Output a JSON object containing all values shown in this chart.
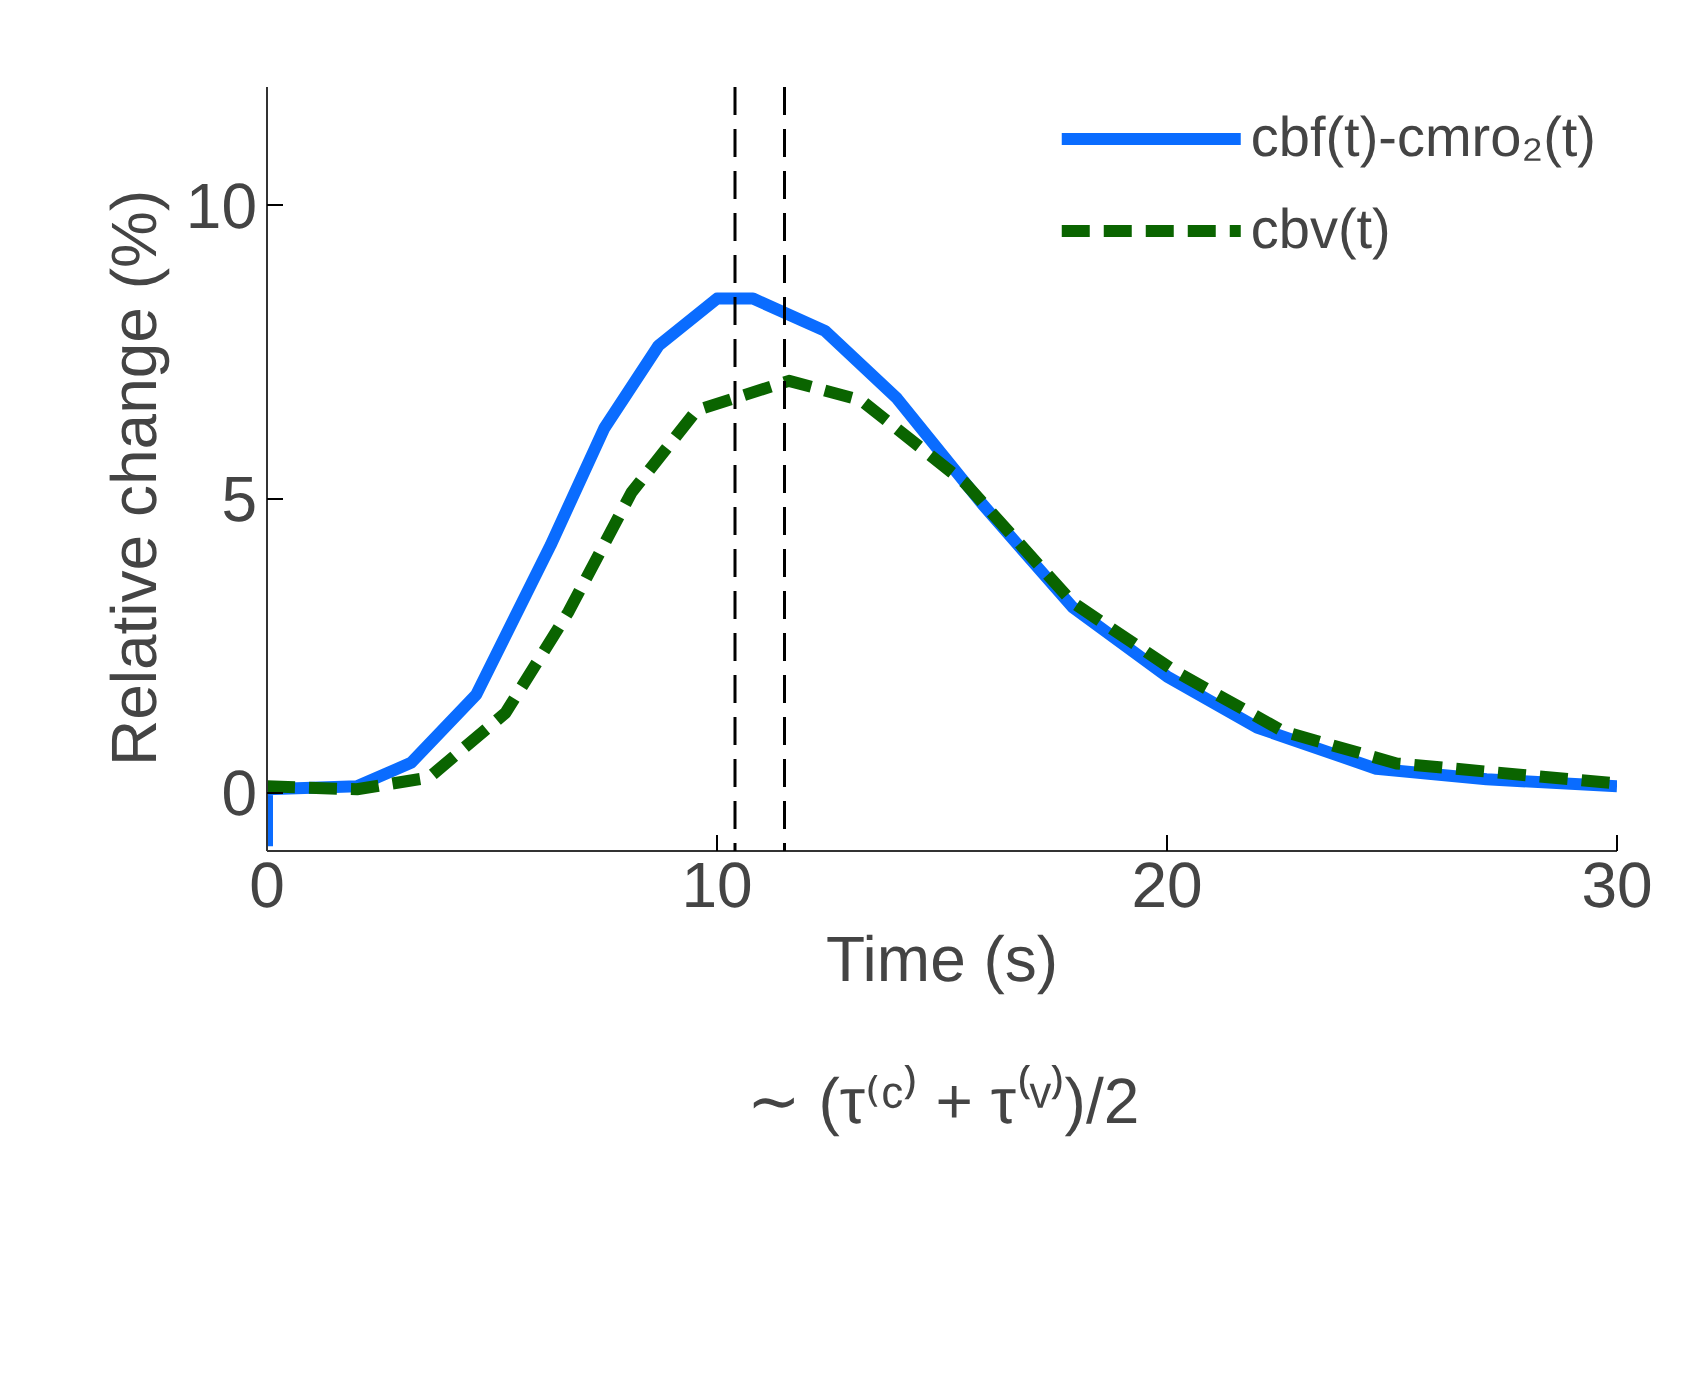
{
  "chart_data": {
    "type": "line",
    "xlabel": "Time (s)",
    "ylabel": "Relative  change (%)",
    "xlim": [
      0,
      30
    ],
    "ylim": [
      -1,
      12
    ],
    "xticks": [
      0,
      10,
      20,
      30
    ],
    "yticks": [
      0,
      5,
      10
    ],
    "grid": false,
    "legend": "top right",
    "series": [
      {
        "name": "cbf(t)-cmro₂(t)",
        "color": "#0a6cff",
        "line_style": "solid",
        "x": [
          0,
          0,
          2.0,
          3.2,
          4.65,
          6.3,
          7.5,
          8.7,
          10.0,
          10.8,
          12.4,
          14.0,
          15.9,
          17.9,
          20.0,
          22.0,
          24.65,
          27.1,
          30
        ],
        "values": [
          -0.92,
          0.05,
          0.1,
          0.5,
          1.66,
          4.2,
          6.2,
          7.6,
          8.4,
          8.4,
          7.85,
          6.7,
          4.9,
          3.15,
          1.97,
          1.1,
          0.4,
          0.22,
          0.1
        ]
      },
      {
        "name": "cbv(t)",
        "color": "#0a6400",
        "line_style": "dashed",
        "x": [
          0,
          2.0,
          3.6,
          5.3,
          6.7,
          8.1,
          9.55,
          11.6,
          13.2,
          15.5,
          17.9,
          20.2,
          22.6,
          25.1,
          30
        ],
        "values": [
          0.1,
          0.05,
          0.25,
          1.35,
          3.07,
          5.1,
          6.5,
          7.0,
          6.67,
          5.27,
          3.23,
          2.05,
          1.03,
          0.49,
          0.15
        ]
      }
    ],
    "ref_lines": [
      {
        "axis": "x",
        "value": 10.4,
        "line_style": "dashed",
        "color": "#000000"
      },
      {
        "axis": "x",
        "value": 11.5,
        "line_style": "dashed",
        "color": "#000000"
      }
    ],
    "annotations": [
      "∼ (τ⁽ᶜ⁾ + τ⁽ᵛ⁾)/2"
    ]
  }
}
